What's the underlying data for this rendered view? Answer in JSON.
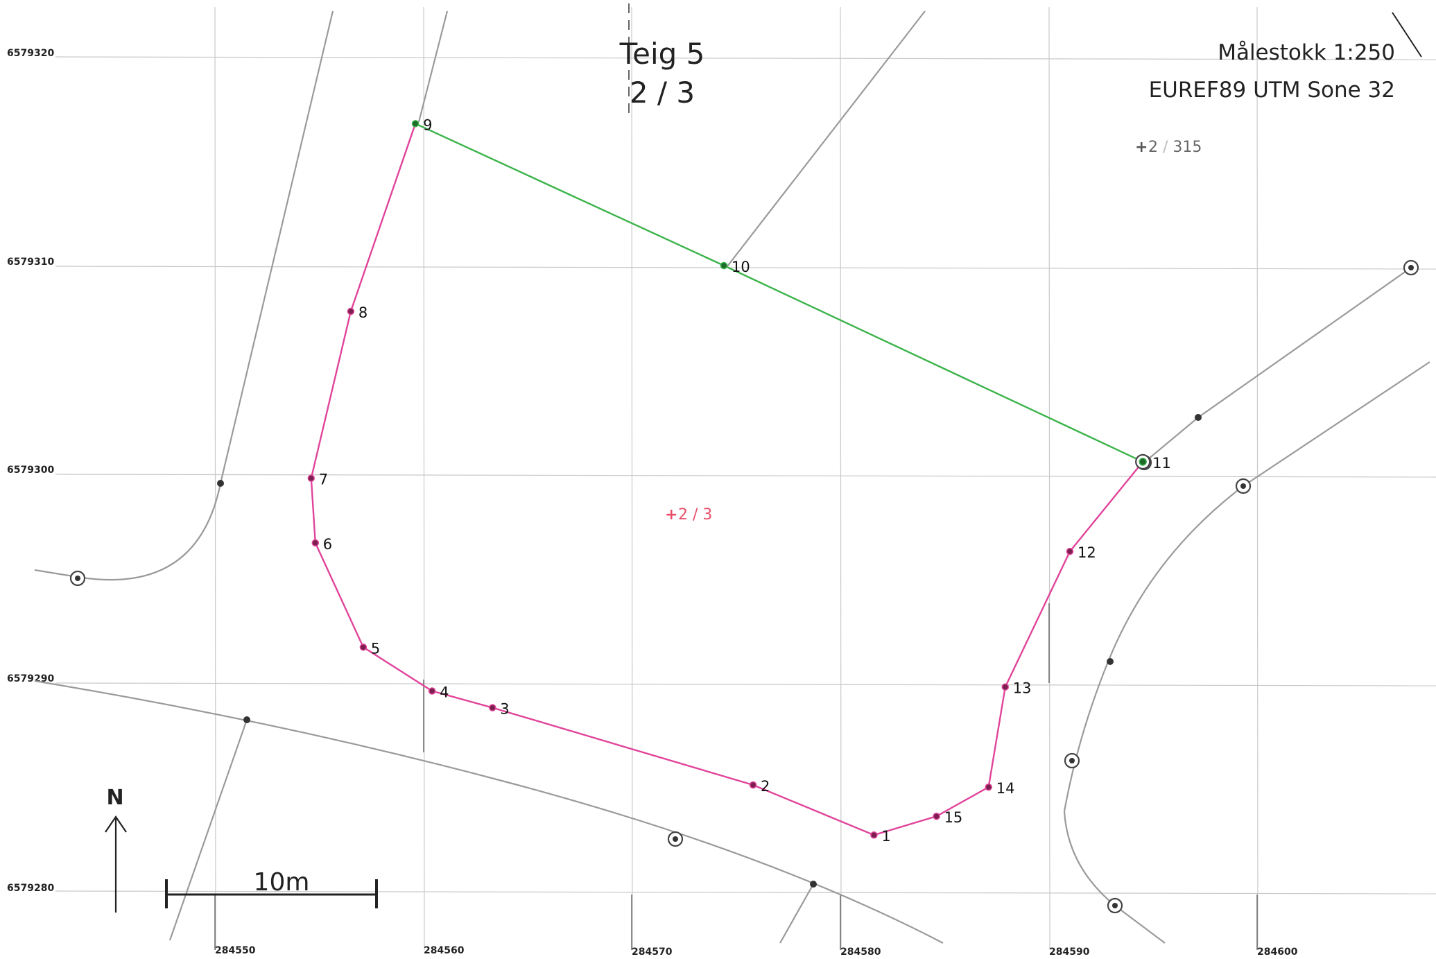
{
  "title": {
    "line1": "Teig 5",
    "line2": "2 / 3"
  },
  "scale_text": "Målestokk 1:250",
  "crs_text": "EUREF89 UTM Sone 32",
  "parcel_labels": {
    "neighbor": {
      "prefix": "2",
      "slash": " / ",
      "suffix": "315"
    },
    "current": "2 / 3"
  },
  "grid": {
    "easting_labels": [
      "284550",
      "284560",
      "284570",
      "284580",
      "284590",
      "284600"
    ],
    "northing_labels": [
      "6579320",
      "6579310",
      "6579300",
      "6579290",
      "6579280"
    ]
  },
  "north_arrow_label": "N",
  "scalebar": {
    "label": "10m",
    "length_m": 10
  },
  "boundary": {
    "color_parcel": "#e0449a",
    "color_shared": "#3bb34a",
    "parcel_point_order": [
      "9",
      "8",
      "7",
      "6",
      "5",
      "4",
      "3",
      "2",
      "1",
      "15",
      "14",
      "13",
      "12",
      "11"
    ],
    "shared_point_order": [
      "9",
      "10",
      "11"
    ],
    "points": [
      {
        "id": "1",
        "e": 284581.6,
        "n": 6579282.7,
        "type": "parcel"
      },
      {
        "id": "2",
        "e": 284575.8,
        "n": 6579285.1,
        "type": "parcel"
      },
      {
        "id": "3",
        "e": 284563.3,
        "n": 6579288.8,
        "type": "parcel"
      },
      {
        "id": "4",
        "e": 284560.4,
        "n": 6579289.6,
        "type": "parcel"
      },
      {
        "id": "5",
        "e": 284557.1,
        "n": 6579291.7,
        "type": "parcel"
      },
      {
        "id": "6",
        "e": 284554.8,
        "n": 6579296.7,
        "type": "parcel"
      },
      {
        "id": "7",
        "e": 284554.6,
        "n": 6579299.8,
        "type": "parcel"
      },
      {
        "id": "8",
        "e": 284556.5,
        "n": 6579307.8,
        "type": "parcel"
      },
      {
        "id": "9",
        "e": 284559.6,
        "n": 6579316.8,
        "type": "shared"
      },
      {
        "id": "10",
        "e": 284574.4,
        "n": 6579310.0,
        "type": "shared"
      },
      {
        "id": "11",
        "e": 284594.5,
        "n": 6579300.6,
        "type": "shared"
      },
      {
        "id": "12",
        "e": 284591.0,
        "n": 6579296.3,
        "type": "parcel"
      },
      {
        "id": "13",
        "e": 284587.9,
        "n": 6579289.8,
        "type": "parcel"
      },
      {
        "id": "14",
        "e": 284587.1,
        "n": 6579285.0,
        "type": "parcel"
      },
      {
        "id": "15",
        "e": 284584.6,
        "n": 6579283.6,
        "type": "parcel"
      }
    ]
  }
}
